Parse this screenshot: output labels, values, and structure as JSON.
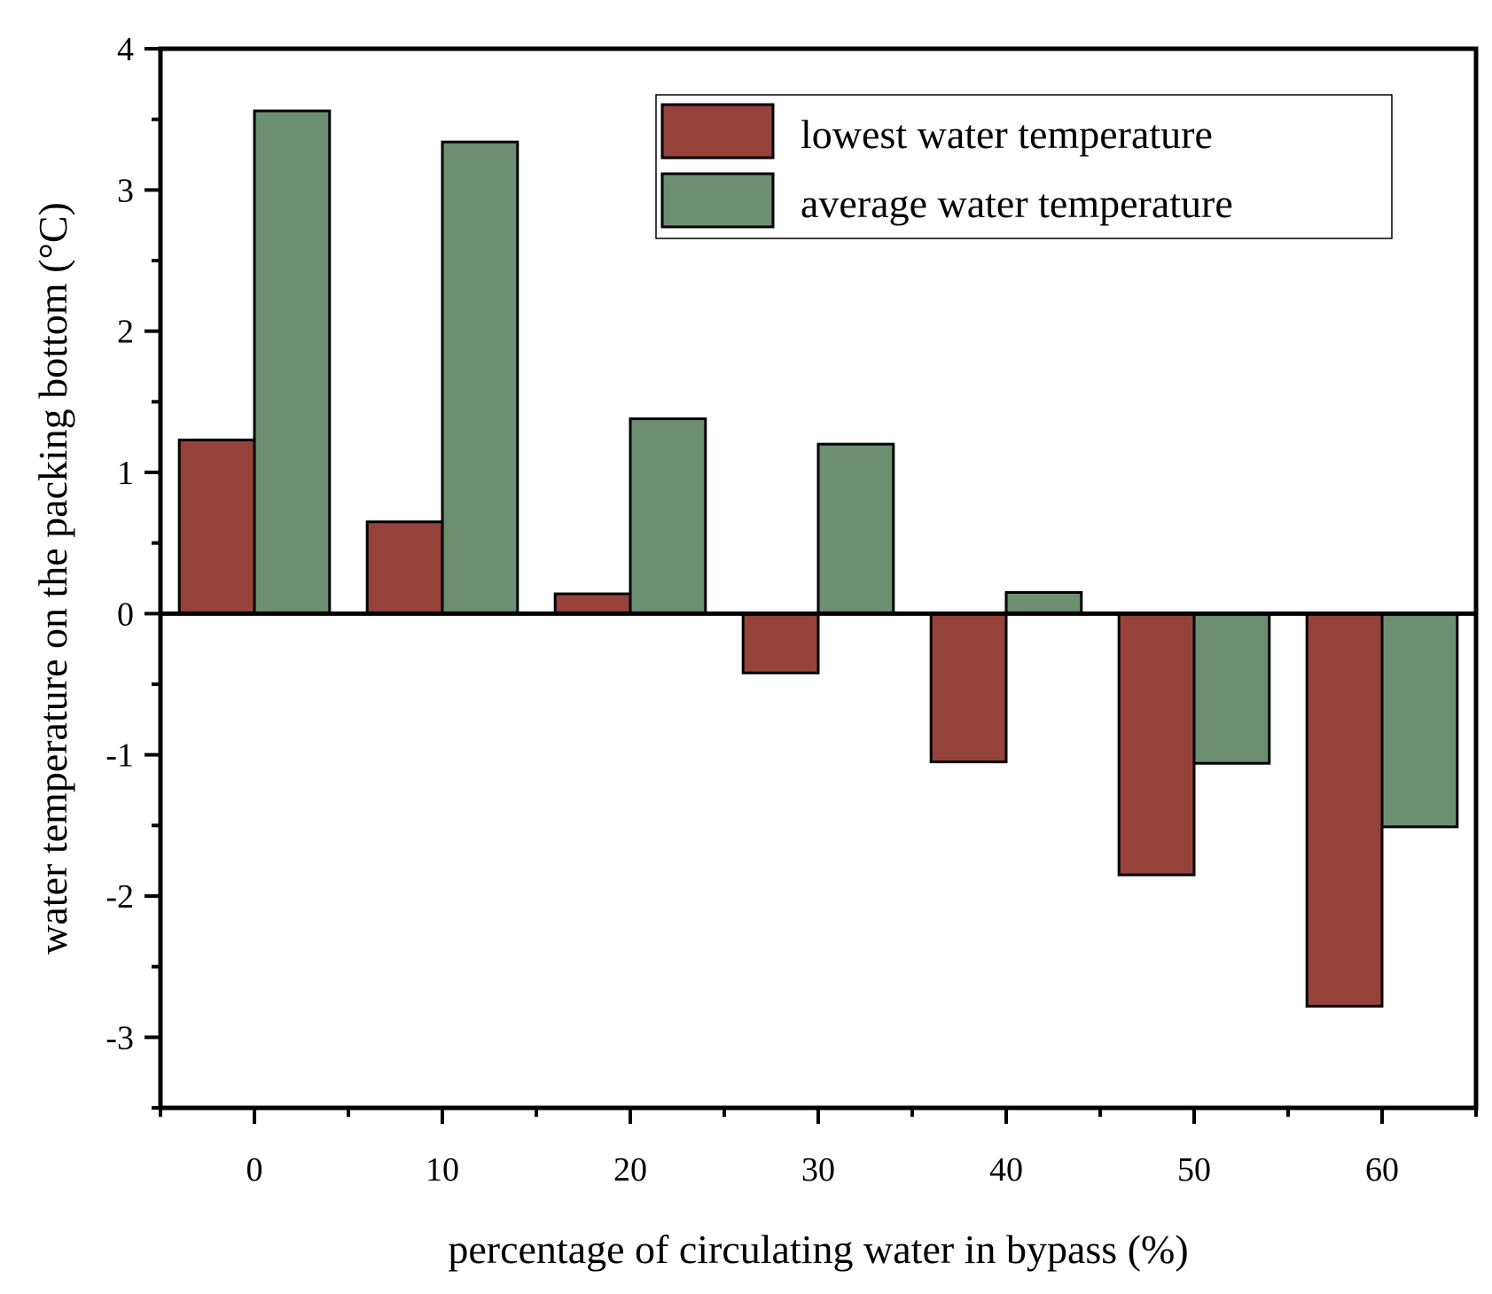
{
  "chart_data": {
    "type": "bar",
    "title": "",
    "xlabel": "percentage of circulating water in bypass (%)",
    "ylabel": "water temperature on the packing bottom (°C)",
    "categories": [
      "0",
      "10",
      "20",
      "30",
      "40",
      "50",
      "60"
    ],
    "x_values": [
      0,
      10,
      20,
      30,
      40,
      50,
      60
    ],
    "xlim": [
      -5,
      65
    ],
    "ylim": [
      -3.5,
      4
    ],
    "y_ticks": [
      -3,
      -2,
      -1,
      0,
      1,
      2,
      3,
      4
    ],
    "y_tick_labels": [
      "-3",
      "-2",
      "-1",
      "0",
      "1",
      "2",
      "3",
      "4"
    ],
    "grid": false,
    "legend_position": "top-right",
    "series": [
      {
        "name": "lowest water temperature",
        "color": "#95423A",
        "values": [
          1.23,
          0.65,
          0.14,
          -0.42,
          -1.05,
          -1.85,
          -2.78
        ]
      },
      {
        "name": "average water temperature",
        "color": "#6D8F71",
        "values": [
          3.56,
          3.34,
          1.38,
          1.2,
          0.15,
          -1.06,
          -1.51
        ]
      }
    ]
  }
}
